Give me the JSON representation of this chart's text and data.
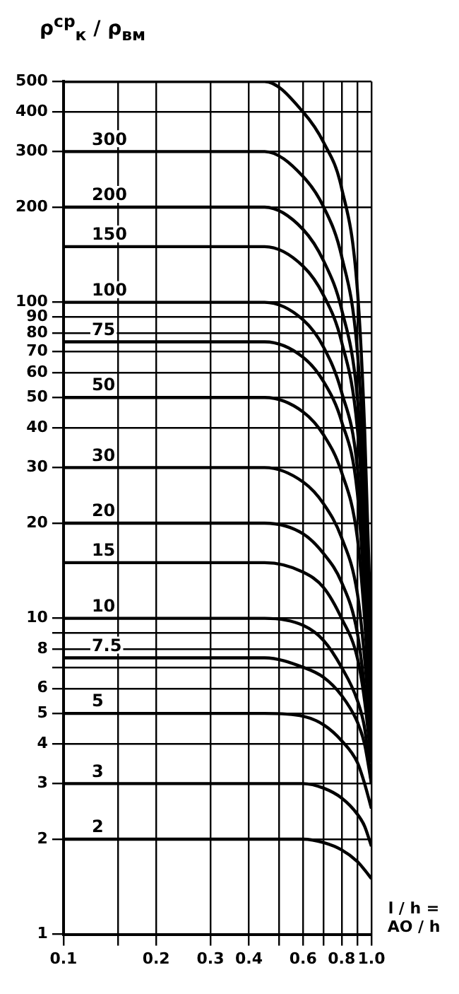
{
  "chart_data": {
    "type": "line",
    "ylabel": "ρ$^{ср}$$_{к}$ / ρ$_{вм}$",
    "xlabel": "l / h = AO / h",
    "log": "xy",
    "grid": true,
    "legend": false,
    "marker": "none",
    "line_style": "solid",
    "x": [
      0.1,
      0.45,
      0.6,
      0.7,
      0.8,
      0.9,
      0.95,
      1.0
    ],
    "xlim": [
      0.1,
      1.0
    ],
    "xticks": [
      0.1,
      {
        "value": 0.15,
        "label": null
      },
      0.2,
      0.3,
      0.4,
      {
        "value": 0.5,
        "label": null
      },
      0.6,
      {
        "value": 0.7,
        "label": null
      },
      0.8,
      {
        "value": 0.9,
        "label": null
      },
      {
        "value": 1,
        "label": "1.0"
      }
    ],
    "ylim": [
      1,
      500
    ],
    "yticks": [
      1,
      2,
      3,
      4,
      5,
      6,
      {
        "value": 7,
        "label": null
      },
      8,
      {
        "value": 9,
        "label": null
      },
      10,
      20,
      30,
      40,
      50,
      60,
      70,
      80,
      90,
      100,
      200,
      300,
      400,
      500
    ],
    "series": [
      {
        "color": "#000000",
        "values": [
          500,
          500,
          400,
          320,
          230,
          110,
          40,
          8
        ]
      },
      {
        "name": "300",
        "color": "#000000",
        "values": [
          300,
          300,
          250,
          200,
          140,
          70,
          28,
          7
        ]
      },
      {
        "name": "200",
        "color": "#000000",
        "values": [
          200,
          200,
          170,
          135,
          95,
          50,
          22,
          6
        ]
      },
      {
        "name": "150",
        "color": "#000000",
        "values": [
          150,
          150,
          130,
          105,
          75,
          40,
          18,
          6
        ]
      },
      {
        "name": "100",
        "color": "#000000",
        "values": [
          100,
          100,
          88,
          72,
          52,
          30,
          14,
          5
        ]
      },
      {
        "name": "75",
        "color": "#000000",
        "values": [
          75,
          75,
          67,
          56,
          42,
          25,
          12,
          5
        ]
      },
      {
        "name": "50",
        "color": "#000000",
        "values": [
          50,
          50,
          45,
          38,
          29,
          18,
          10,
          4.5
        ]
      },
      {
        "name": "30",
        "color": "#000000",
        "values": [
          30,
          30,
          27,
          23,
          18,
          12,
          7.5,
          4
        ]
      },
      {
        "name": "20",
        "color": "#000000",
        "values": [
          20,
          20,
          18.5,
          16,
          13,
          9,
          6,
          3.5
        ]
      },
      {
        "name": "15",
        "color": "#000000",
        "values": [
          15,
          15,
          14,
          12.5,
          10,
          7.5,
          5.5,
          3.5
        ]
      },
      {
        "name": "10",
        "color": "#000000",
        "values": [
          10,
          10,
          9.5,
          8.5,
          7,
          5.5,
          4.5,
          3
        ]
      },
      {
        "name": "7.5",
        "color": "#000000",
        "values": [
          7.5,
          7.5,
          7,
          6.5,
          5.7,
          4.7,
          4,
          3
        ]
      },
      {
        "name": "5",
        "color": "#000000",
        "values": [
          5,
          5,
          4.9,
          4.6,
          4.1,
          3.5,
          3,
          2.5
        ]
      },
      {
        "name": "3",
        "color": "#000000",
        "values": [
          3,
          3,
          3,
          2.9,
          2.7,
          2.4,
          2.2,
          1.9
        ]
      },
      {
        "name": "2",
        "color": "#000000",
        "values": [
          2,
          2,
          2,
          1.95,
          1.85,
          1.7,
          1.6,
          1.5
        ]
      }
    ]
  }
}
